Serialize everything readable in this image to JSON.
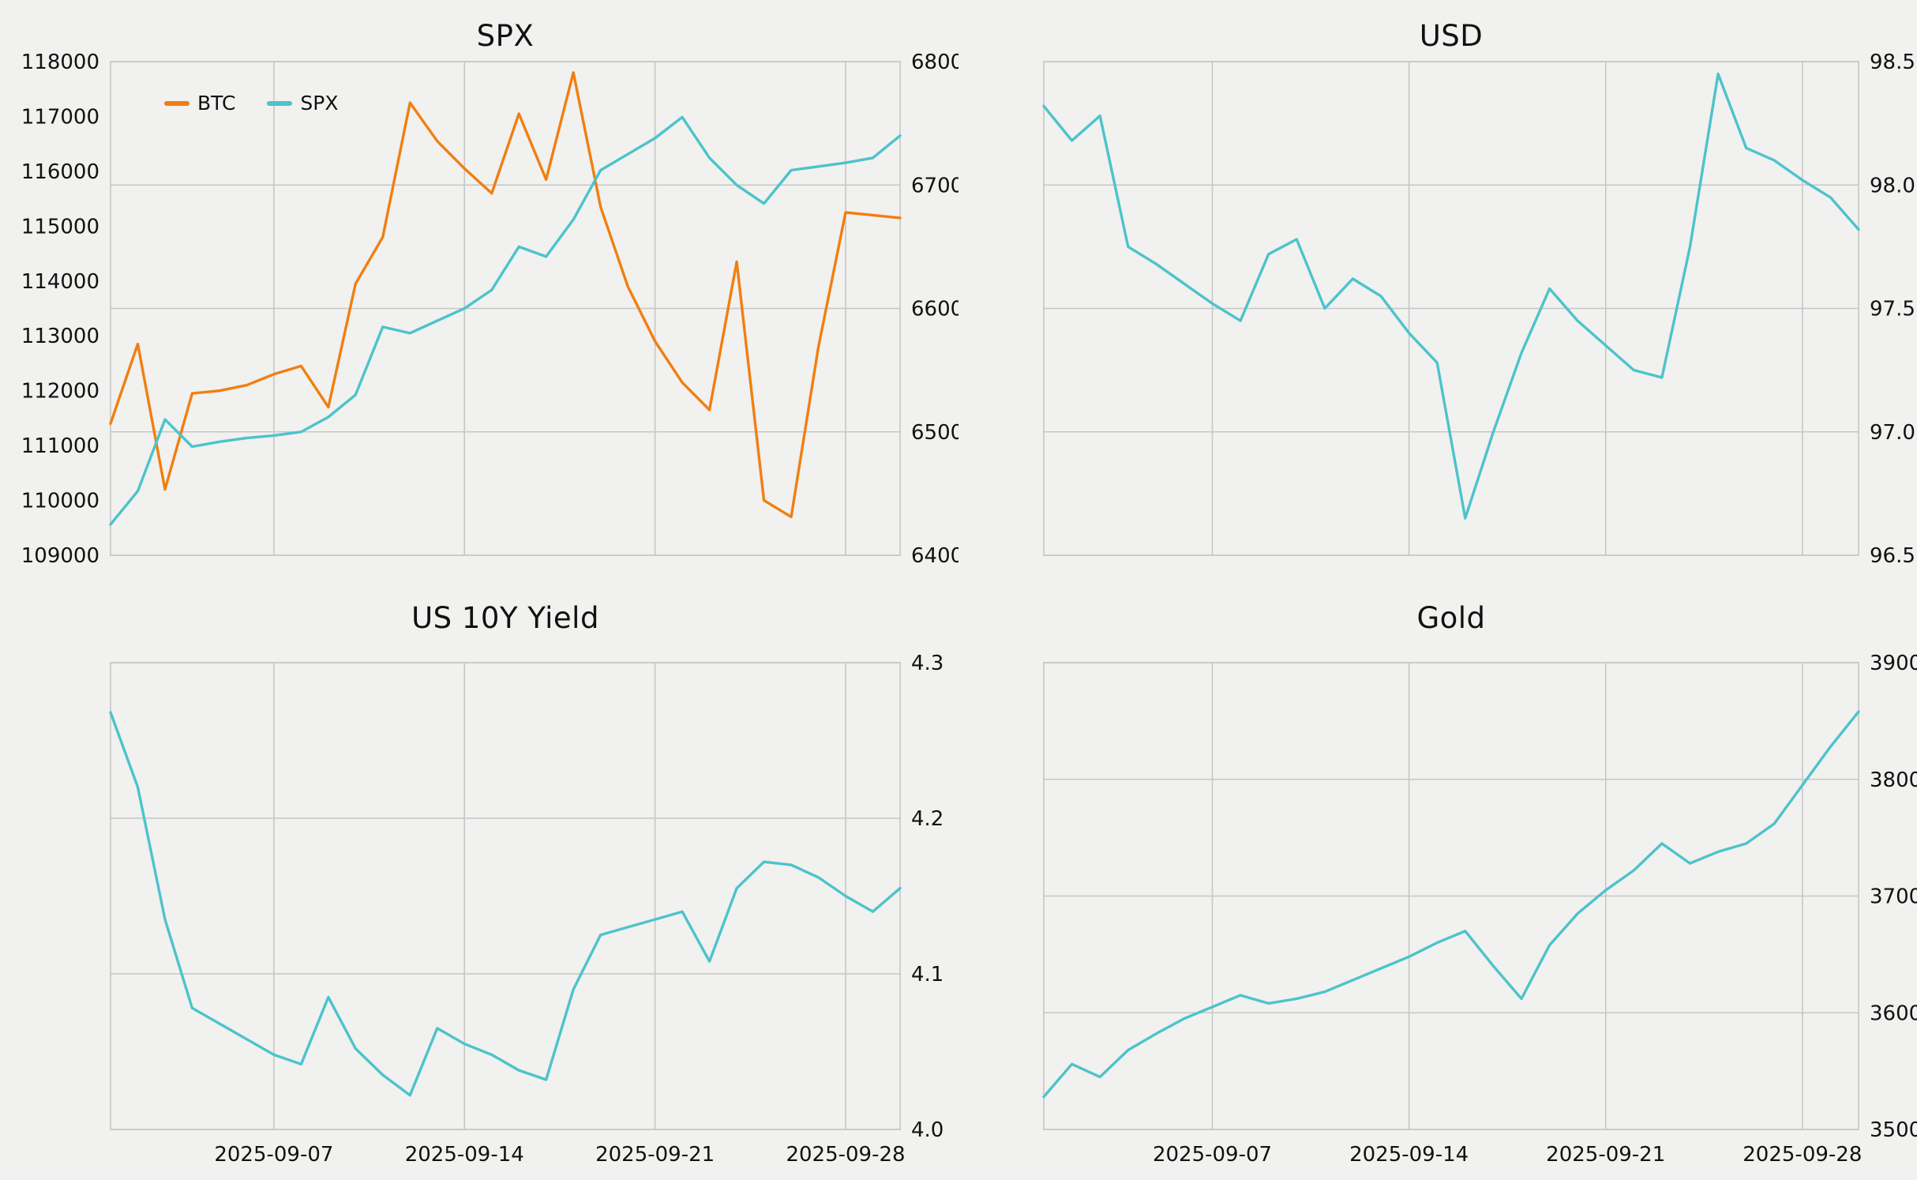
{
  "layout": {
    "background": "#F1F1EF",
    "grid_color": "#C6C6C6",
    "text_color": "#111111",
    "grid_on": true,
    "legend_position": "top-left-inside",
    "x_tick_labels_shown_only_on_bottom_row": true
  },
  "chart_data": [
    {
      "type": "line",
      "title": "SPX",
      "x": [
        "2025-09-01",
        "2025-09-02",
        "2025-09-03",
        "2025-09-04",
        "2025-09-05",
        "2025-09-06",
        "2025-09-07",
        "2025-09-08",
        "2025-09-09",
        "2025-09-10",
        "2025-09-11",
        "2025-09-12",
        "2025-09-13",
        "2025-09-14",
        "2025-09-15",
        "2025-09-16",
        "2025-09-17",
        "2025-09-18",
        "2025-09-19",
        "2025-09-20",
        "2025-09-21",
        "2025-09-22",
        "2025-09-23",
        "2025-09-24",
        "2025-09-25",
        "2025-09-26",
        "2025-09-27",
        "2025-09-28",
        "2025-09-29",
        "2025-09-30"
      ],
      "x_ticks": [
        "2025-09-07",
        "2025-09-14",
        "2025-09-21",
        "2025-09-28"
      ],
      "show_x_labels": false,
      "axes": {
        "left": {
          "min": 109000,
          "max": 118000,
          "ticks": [
            109000,
            110000,
            111000,
            112000,
            113000,
            114000,
            115000,
            116000,
            117000,
            118000
          ],
          "tick_labels": [
            "109000",
            "110000",
            "111000",
            "112000",
            "113000",
            "114000",
            "115000",
            "116000",
            "117000",
            "118000"
          ]
        },
        "right": {
          "min": 6400,
          "max": 6800,
          "ticks": [
            6400,
            6500,
            6600,
            6700,
            6800
          ],
          "tick_labels": [
            "6400",
            "6500",
            "6600",
            "6700",
            "6800"
          ]
        }
      },
      "legend": {
        "items": [
          {
            "label": "BTC",
            "color": "#F07F11"
          },
          {
            "label": "SPX",
            "color": "#4DC3CB"
          }
        ]
      },
      "series": [
        {
          "name": "BTC",
          "axis": "left",
          "color": "#F07F11",
          "values": [
            111400,
            112850,
            110200,
            111950,
            112000,
            112100,
            112300,
            112450,
            111700,
            113950,
            114800,
            117250,
            116550,
            116050,
            115600,
            117050,
            115850,
            117800,
            115350,
            113900,
            112900,
            112150,
            111650,
            114350,
            110000,
            109700,
            112800,
            115250,
            115200,
            115150
          ]
        },
        {
          "name": "SPX",
          "axis": "right",
          "color": "#4DC3CB",
          "values": [
            6425,
            6452,
            6510,
            6488,
            6492,
            6495,
            6497,
            6500,
            6512,
            6530,
            6585,
            6580,
            6590,
            6600,
            6615,
            6650,
            6642,
            6672,
            6712,
            6725,
            6738,
            6755,
            6722,
            6700,
            6685,
            6712,
            6715,
            6718,
            6722,
            6740
          ]
        }
      ]
    },
    {
      "type": "line",
      "title": "USD",
      "x": [
        "2025-09-01",
        "2025-09-02",
        "2025-09-03",
        "2025-09-04",
        "2025-09-05",
        "2025-09-06",
        "2025-09-07",
        "2025-09-08",
        "2025-09-09",
        "2025-09-10",
        "2025-09-11",
        "2025-09-12",
        "2025-09-13",
        "2025-09-14",
        "2025-09-15",
        "2025-09-16",
        "2025-09-17",
        "2025-09-18",
        "2025-09-19",
        "2025-09-20",
        "2025-09-21",
        "2025-09-22",
        "2025-09-23",
        "2025-09-24",
        "2025-09-25",
        "2025-09-26",
        "2025-09-27",
        "2025-09-28",
        "2025-09-29",
        "2025-09-30"
      ],
      "x_ticks": [
        "2025-09-07",
        "2025-09-14",
        "2025-09-21",
        "2025-09-28"
      ],
      "show_x_labels": false,
      "axes": {
        "right": {
          "min": 96.5,
          "max": 98.5,
          "ticks": [
            96.5,
            97.0,
            97.5,
            98.0,
            98.5
          ],
          "tick_labels": [
            "96.5",
            "97.0",
            "97.5",
            "98.0",
            "98.5"
          ]
        }
      },
      "series": [
        {
          "name": "USD",
          "axis": "right",
          "color": "#4DC3CB",
          "values": [
            98.32,
            98.18,
            98.28,
            97.75,
            97.68,
            97.6,
            97.52,
            97.45,
            97.72,
            97.78,
            97.5,
            97.62,
            97.55,
            97.4,
            97.28,
            96.65,
            97.0,
            97.32,
            97.58,
            97.45,
            97.35,
            97.25,
            97.22,
            97.75,
            98.45,
            98.15,
            98.1,
            98.02,
            97.95,
            97.82
          ]
        }
      ]
    },
    {
      "type": "line",
      "title": "US 10Y Yield",
      "x": [
        "2025-09-01",
        "2025-09-02",
        "2025-09-03",
        "2025-09-04",
        "2025-09-05",
        "2025-09-06",
        "2025-09-07",
        "2025-09-08",
        "2025-09-09",
        "2025-09-10",
        "2025-09-11",
        "2025-09-12",
        "2025-09-13",
        "2025-09-14",
        "2025-09-15",
        "2025-09-16",
        "2025-09-17",
        "2025-09-18",
        "2025-09-19",
        "2025-09-20",
        "2025-09-21",
        "2025-09-22",
        "2025-09-23",
        "2025-09-24",
        "2025-09-25",
        "2025-09-26",
        "2025-09-27",
        "2025-09-28",
        "2025-09-29",
        "2025-09-30"
      ],
      "x_ticks": [
        "2025-09-07",
        "2025-09-14",
        "2025-09-21",
        "2025-09-28"
      ],
      "show_x_labels": true,
      "axes": {
        "right": {
          "min": 4.0,
          "max": 4.3,
          "ticks": [
            4.0,
            4.1,
            4.2,
            4.3
          ],
          "tick_labels": [
            "4.0",
            "4.1",
            "4.2",
            "4.3"
          ]
        }
      },
      "series": [
        {
          "name": "US10Y",
          "axis": "right",
          "color": "#4DC3CB",
          "values": [
            4.268,
            4.22,
            4.135,
            4.078,
            4.068,
            4.058,
            4.048,
            4.042,
            4.085,
            4.052,
            4.035,
            4.022,
            4.065,
            4.055,
            4.048,
            4.038,
            4.032,
            4.09,
            4.125,
            4.13,
            4.135,
            4.14,
            4.108,
            4.155,
            4.172,
            4.17,
            4.162,
            4.15,
            4.14,
            4.155
          ]
        }
      ]
    },
    {
      "type": "line",
      "title": "Gold",
      "x": [
        "2025-09-01",
        "2025-09-02",
        "2025-09-03",
        "2025-09-04",
        "2025-09-05",
        "2025-09-06",
        "2025-09-07",
        "2025-09-08",
        "2025-09-09",
        "2025-09-10",
        "2025-09-11",
        "2025-09-12",
        "2025-09-13",
        "2025-09-14",
        "2025-09-15",
        "2025-09-16",
        "2025-09-17",
        "2025-09-18",
        "2025-09-19",
        "2025-09-20",
        "2025-09-21",
        "2025-09-22",
        "2025-09-23",
        "2025-09-24",
        "2025-09-25",
        "2025-09-26",
        "2025-09-27",
        "2025-09-28",
        "2025-09-29",
        "2025-09-30"
      ],
      "x_ticks": [
        "2025-09-07",
        "2025-09-14",
        "2025-09-21",
        "2025-09-28"
      ],
      "show_x_labels": true,
      "axes": {
        "right": {
          "min": 3500,
          "max": 3900,
          "ticks": [
            3500,
            3600,
            3700,
            3800,
            3900
          ],
          "tick_labels": [
            "3500",
            "3600",
            "3700",
            "3800",
            "3900"
          ]
        }
      },
      "series": [
        {
          "name": "Gold",
          "axis": "right",
          "color": "#4DC3CB",
          "values": [
            3528,
            3556,
            3545,
            3568,
            3582,
            3595,
            3605,
            3615,
            3608,
            3612,
            3618,
            3628,
            3638,
            3648,
            3660,
            3670,
            3640,
            3612,
            3658,
            3685,
            3705,
            3722,
            3745,
            3728,
            3738,
            3745,
            3762,
            3795,
            3828,
            3858
          ]
        }
      ]
    }
  ]
}
